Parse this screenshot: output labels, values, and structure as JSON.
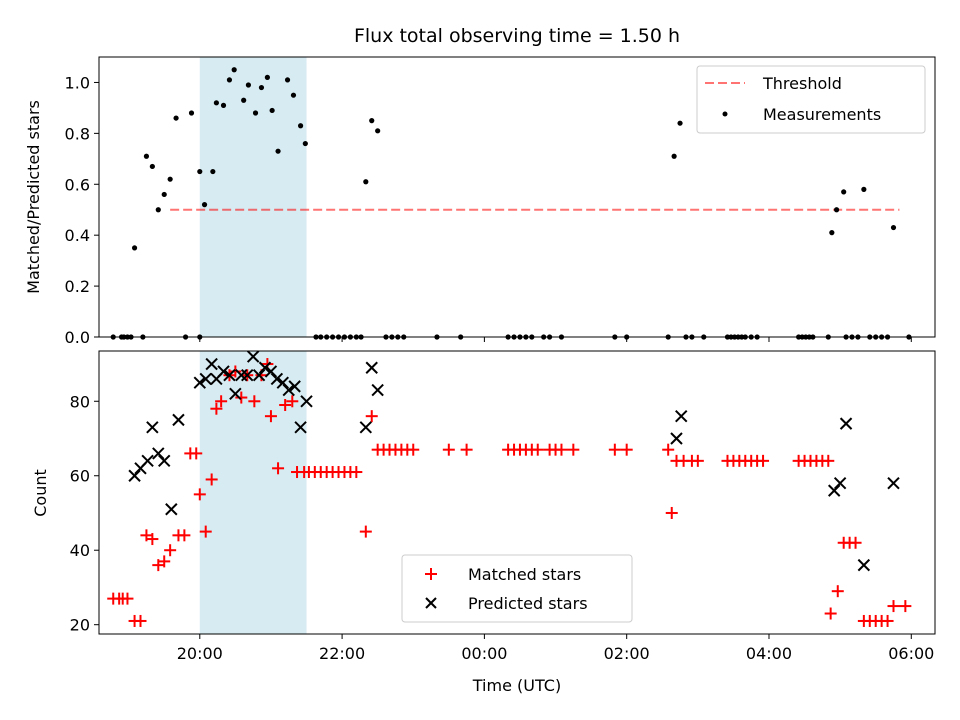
{
  "chart_data": [
    {
      "type": "scatter",
      "panel": "top",
      "title": "Flux total observing time = 1.50 h",
      "xlabel": "",
      "ylabel": "Matched/Predicted stars",
      "ylim": [
        0,
        1.1
      ],
      "yticks": [
        0.0,
        0.2,
        0.4,
        0.6,
        0.8,
        1.0
      ],
      "ytick_labels": [
        "0.0",
        "0.2",
        "0.4",
        "0.6",
        "0.8",
        "1.0"
      ],
      "shaded_span": {
        "x_start": "20:00",
        "x_end": "21:30",
        "color": "#add8e6"
      },
      "threshold": {
        "name": "Threshold",
        "value": 0.5,
        "x_start": "19:35",
        "x_end": "05:50",
        "color": "#ff7070"
      },
      "legend": {
        "position": "upper right",
        "entries": [
          "Threshold",
          "Measurements"
        ]
      },
      "series": [
        {
          "name": "Measurements",
          "color": "#000000",
          "points": [
            [
              "18:47",
              0
            ],
            [
              "18:54",
              0
            ],
            [
              "18:56",
              0
            ],
            [
              "18:59",
              0
            ],
            [
              "19:02",
              0
            ],
            [
              "19:05",
              0.35
            ],
            [
              "19:12",
              0
            ],
            [
              "19:15",
              0.71
            ],
            [
              "19:20",
              0.67
            ],
            [
              "19:25",
              0.5
            ],
            [
              "19:30",
              0.56
            ],
            [
              "19:35",
              0.62
            ],
            [
              "19:40",
              0.86
            ],
            [
              "19:48",
              0
            ],
            [
              "19:53",
              0.88
            ],
            [
              "20:00",
              0
            ],
            [
              "20:00",
              0.65
            ],
            [
              "20:04",
              0.52
            ],
            [
              "20:11",
              0.65
            ],
            [
              "20:14",
              0.92
            ],
            [
              "20:20",
              0.91
            ],
            [
              "20:25",
              1.01
            ],
            [
              "20:29",
              1.05
            ],
            [
              "20:37",
              0.93
            ],
            [
              "20:41",
              0.99
            ],
            [
              "20:47",
              0.88
            ],
            [
              "20:52",
              0.98
            ],
            [
              "20:57",
              1.02
            ],
            [
              "21:01",
              0.89
            ],
            [
              "21:06",
              0.73
            ],
            [
              "21:14",
              1.01
            ],
            [
              "21:19",
              0.95
            ],
            [
              "21:25",
              0.83
            ],
            [
              "21:29",
              0.76
            ],
            [
              "21:38",
              0
            ],
            [
              "21:42",
              0
            ],
            [
              "21:47",
              0
            ],
            [
              "21:52",
              0
            ],
            [
              "21:57",
              0
            ],
            [
              "22:02",
              0
            ],
            [
              "22:07",
              0
            ],
            [
              "22:12",
              0
            ],
            [
              "22:16",
              0
            ],
            [
              "22:20",
              0.61
            ],
            [
              "22:25",
              0.85
            ],
            [
              "22:30",
              0.81
            ],
            [
              "22:37",
              0
            ],
            [
              "22:42",
              0
            ],
            [
              "22:47",
              0
            ],
            [
              "22:52",
              0
            ],
            [
              "23:20",
              0
            ],
            [
              "23:40",
              0
            ],
            [
              "00:20",
              0
            ],
            [
              "00:25",
              0
            ],
            [
              "00:30",
              0
            ],
            [
              "00:35",
              0
            ],
            [
              "00:40",
              0
            ],
            [
              "00:50",
              0
            ],
            [
              "00:55",
              0
            ],
            [
              "01:05",
              0
            ],
            [
              "01:50",
              0
            ],
            [
              "02:00",
              0
            ],
            [
              "02:35",
              0
            ],
            [
              "02:40",
              0.71
            ],
            [
              "02:45",
              0.84
            ],
            [
              "02:50",
              0
            ],
            [
              "02:55",
              0
            ],
            [
              "03:05",
              0
            ],
            [
              "03:25",
              0
            ],
            [
              "03:28",
              0
            ],
            [
              "03:31",
              0
            ],
            [
              "03:34",
              0
            ],
            [
              "03:37",
              0
            ],
            [
              "03:40",
              0
            ],
            [
              "03:45",
              0
            ],
            [
              "03:50",
              0
            ],
            [
              "04:25",
              0
            ],
            [
              "04:28",
              0
            ],
            [
              "04:31",
              0
            ],
            [
              "04:34",
              0
            ],
            [
              "04:37",
              0
            ],
            [
              "04:50",
              0
            ],
            [
              "04:53",
              0.41
            ],
            [
              "04:57",
              0.5
            ],
            [
              "05:03",
              0.57
            ],
            [
              "05:05",
              0
            ],
            [
              "05:10",
              0
            ],
            [
              "05:15",
              0
            ],
            [
              "05:20",
              0.58
            ],
            [
              "05:25",
              0
            ],
            [
              "05:30",
              0
            ],
            [
              "05:35",
              0
            ],
            [
              "05:40",
              0
            ],
            [
              "05:45",
              0.43
            ],
            [
              "05:58",
              0
            ]
          ]
        }
      ]
    },
    {
      "type": "scatter",
      "panel": "bottom",
      "title": "",
      "xlabel": "Time (UTC)",
      "ylabel": "Count",
      "xlim": [
        "18:35",
        "06:20"
      ],
      "xticks": [
        "20:00",
        "22:00",
        "00:00",
        "02:00",
        "04:00",
        "06:00"
      ],
      "ylim": [
        17.5,
        93.5
      ],
      "yticks": [
        20,
        40,
        60,
        80
      ],
      "ytick_labels": [
        "20",
        "40",
        "60",
        "80"
      ],
      "shaded_span": {
        "x_start": "20:00",
        "x_end": "21:30",
        "color": "#add8e6"
      },
      "legend": {
        "position": "lower center",
        "entries": [
          "Matched stars",
          "Predicted stars"
        ]
      },
      "series": [
        {
          "name": "Matched stars",
          "marker": "+",
          "color": "#ff0000",
          "points": [
            [
              "18:47",
              27
            ],
            [
              "18:52",
              27
            ],
            [
              "18:55",
              27
            ],
            [
              "18:59",
              27
            ],
            [
              "19:05",
              21
            ],
            [
              "19:10",
              21
            ],
            [
              "19:15",
              44
            ],
            [
              "19:20",
              43
            ],
            [
              "19:25",
              36
            ],
            [
              "19:30",
              37
            ],
            [
              "19:35",
              40
            ],
            [
              "19:42",
              44
            ],
            [
              "19:47",
              44
            ],
            [
              "19:52",
              66
            ],
            [
              "19:57",
              66
            ],
            [
              "20:00",
              55
            ],
            [
              "20:05",
              45
            ],
            [
              "20:10",
              59
            ],
            [
              "20:14",
              78
            ],
            [
              "20:18",
              80
            ],
            [
              "20:25",
              87
            ],
            [
              "20:30",
              88
            ],
            [
              "20:35",
              81
            ],
            [
              "20:40",
              87
            ],
            [
              "20:46",
              80
            ],
            [
              "20:52",
              87
            ],
            [
              "20:57",
              90
            ],
            [
              "21:00",
              76
            ],
            [
              "21:06",
              62
            ],
            [
              "21:12",
              79
            ],
            [
              "21:18",
              80
            ],
            [
              "21:22",
              61
            ],
            [
              "21:28",
              61
            ],
            [
              "21:32",
              61
            ],
            [
              "21:37",
              61
            ],
            [
              "21:42",
              61
            ],
            [
              "21:47",
              61
            ],
            [
              "21:52",
              61
            ],
            [
              "21:57",
              61
            ],
            [
              "22:02",
              61
            ],
            [
              "22:07",
              61
            ],
            [
              "22:12",
              61
            ],
            [
              "22:20",
              45
            ],
            [
              "22:25",
              76
            ],
            [
              "22:30",
              67
            ],
            [
              "22:35",
              67
            ],
            [
              "22:40",
              67
            ],
            [
              "22:45",
              67
            ],
            [
              "22:50",
              67
            ],
            [
              "22:55",
              67
            ],
            [
              "23:00",
              67
            ],
            [
              "23:30",
              67
            ],
            [
              "23:45",
              67
            ],
            [
              "00:20",
              67
            ],
            [
              "00:25",
              67
            ],
            [
              "00:30",
              67
            ],
            [
              "00:35",
              67
            ],
            [
              "00:40",
              67
            ],
            [
              "00:45",
              67
            ],
            [
              "00:55",
              67
            ],
            [
              "01:00",
              67
            ],
            [
              "01:05",
              67
            ],
            [
              "01:15",
              67
            ],
            [
              "01:50",
              67
            ],
            [
              "02:00",
              67
            ],
            [
              "02:35",
              67
            ],
            [
              "02:38",
              50
            ],
            [
              "02:42",
              64
            ],
            [
              "02:48",
              64
            ],
            [
              "02:55",
              64
            ],
            [
              "03:00",
              64
            ],
            [
              "03:25",
              64
            ],
            [
              "03:30",
              64
            ],
            [
              "03:35",
              64
            ],
            [
              "03:40",
              64
            ],
            [
              "03:45",
              64
            ],
            [
              "03:50",
              64
            ],
            [
              "03:55",
              64
            ],
            [
              "04:25",
              64
            ],
            [
              "04:30",
              64
            ],
            [
              "04:35",
              64
            ],
            [
              "04:40",
              64
            ],
            [
              "04:45",
              64
            ],
            [
              "04:50",
              64
            ],
            [
              "04:52",
              23
            ],
            [
              "04:58",
              29
            ],
            [
              "05:03",
              42
            ],
            [
              "05:08",
              42
            ],
            [
              "05:13",
              42
            ],
            [
              "05:20",
              21
            ],
            [
              "05:25",
              21
            ],
            [
              "05:30",
              21
            ],
            [
              "05:35",
              21
            ],
            [
              "05:40",
              21
            ],
            [
              "05:45",
              25
            ],
            [
              "05:55",
              25
            ]
          ]
        },
        {
          "name": "Predicted stars",
          "marker": "x",
          "color": "#000000",
          "points": [
            [
              "19:05",
              60
            ],
            [
              "19:10",
              62
            ],
            [
              "19:16",
              64
            ],
            [
              "19:20",
              73
            ],
            [
              "19:25",
              66
            ],
            [
              "19:30",
              64
            ],
            [
              "19:36",
              51
            ],
            [
              "19:42",
              75
            ],
            [
              "20:00",
              85
            ],
            [
              "20:05",
              86
            ],
            [
              "20:10",
              90
            ],
            [
              "20:14",
              86
            ],
            [
              "20:20",
              88
            ],
            [
              "20:25",
              87
            ],
            [
              "20:30",
              82
            ],
            [
              "20:35",
              87
            ],
            [
              "20:40",
              87
            ],
            [
              "20:45",
              92
            ],
            [
              "20:50",
              87
            ],
            [
              "20:55",
              89
            ],
            [
              "21:00",
              88
            ],
            [
              "21:05",
              86
            ],
            [
              "21:10",
              85
            ],
            [
              "21:15",
              83
            ],
            [
              "21:20",
              84
            ],
            [
              "21:25",
              73
            ],
            [
              "21:30",
              80
            ],
            [
              "22:20",
              73
            ],
            [
              "22:25",
              89
            ],
            [
              "22:30",
              83
            ],
            [
              "02:42",
              70
            ],
            [
              "02:46",
              76
            ],
            [
              "04:55",
              56
            ],
            [
              "05:00",
              58
            ],
            [
              "05:05",
              74
            ],
            [
              "05:20",
              36
            ],
            [
              "05:45",
              58
            ]
          ]
        }
      ]
    }
  ]
}
